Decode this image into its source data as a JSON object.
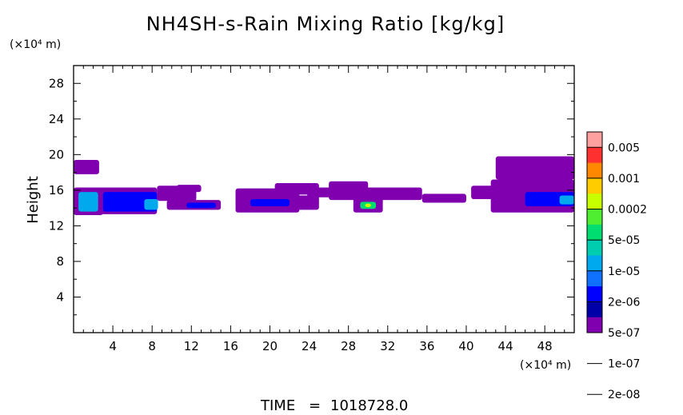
{
  "chart_data": {
    "type": "heatmap",
    "title": "NH4SH-s-Rain Mixing Ratio [kg/kg]",
    "ylabel": "Height",
    "xlabel": "",
    "x_unit": "(×10⁴ m)",
    "y_unit": "(×10⁴ m)",
    "xlim": [
      0,
      51
    ],
    "ylim": [
      0,
      30
    ],
    "x_ticks": [
      "4",
      "8",
      "12",
      "16",
      "20",
      "24",
      "28",
      "32",
      "36",
      "40",
      "44",
      "48"
    ],
    "y_ticks": [
      "4",
      "8",
      "12",
      "16",
      "20",
      "24",
      "28"
    ],
    "colorbar": {
      "scale": "log",
      "labels": [
        "0.005",
        "0.001",
        "0.0002",
        "5e-05",
        "1e-05",
        "2e-06",
        "5e-07",
        "1e-07",
        "2e-08"
      ],
      "colors": [
        "#ffa0a0",
        "#ff3030",
        "#ff8800",
        "#ffcc00",
        "#c8ff00",
        "#50ee30",
        "#00dd70",
        "#00ccb0",
        "#00a8ee",
        "#1070ff",
        "#0000ff",
        "#0000a8",
        "#8000b0"
      ]
    },
    "regions": [
      {
        "x": [
          0,
          2.6
        ],
        "y": [
          17.8,
          19.4
        ],
        "level": "1e-07"
      },
      {
        "x": [
          0,
          3
        ],
        "y": [
          13.2,
          16.3
        ],
        "level": "1e-07"
      },
      {
        "x": [
          0.5,
          2.5
        ],
        "y": [
          13.6,
          15.8
        ],
        "level": "5e-05"
      },
      {
        "x": [
          2.6,
          8.5
        ],
        "y": [
          13.3,
          16.3
        ],
        "level": "5e-07"
      },
      {
        "x": [
          3,
          8.5
        ],
        "y": [
          13.6,
          15.8
        ],
        "level": "1e-05"
      },
      {
        "x": [
          7.2,
          8.6
        ],
        "y": [
          13.8,
          15
        ],
        "level": "5e-05"
      },
      {
        "x": [
          8.5,
          12.5
        ],
        "y": [
          14.8,
          16.5
        ],
        "level": "1e-07"
      },
      {
        "x": [
          10.5,
          13
        ],
        "y": [
          15.8,
          16.6
        ],
        "level": "2e-08"
      },
      {
        "x": [
          9.5,
          15
        ],
        "y": [
          13.8,
          14.9
        ],
        "level": "5e-07"
      },
      {
        "x": [
          11.5,
          14.5
        ],
        "y": [
          14,
          14.6
        ],
        "level": "1e-05"
      },
      {
        "x": [
          16.5,
          23
        ],
        "y": [
          13.5,
          16.2
        ],
        "level": "1e-07"
      },
      {
        "x": [
          17,
          22.5
        ],
        "y": [
          13.8,
          15.5
        ],
        "level": "5e-07"
      },
      {
        "x": [
          18,
          22
        ],
        "y": [
          14.2,
          15
        ],
        "level": "1e-05"
      },
      {
        "x": [
          20.5,
          25
        ],
        "y": [
          15.5,
          16.8
        ],
        "level": "1e-07"
      },
      {
        "x": [
          22,
          25
        ],
        "y": [
          13.8,
          15.4
        ],
        "level": "2e-08"
      },
      {
        "x": [
          23.8,
          26.5
        ],
        "y": [
          15.2,
          16.3
        ],
        "level": "1e-07"
      },
      {
        "x": [
          26,
          30
        ],
        "y": [
          15.5,
          17
        ],
        "level": "2e-08"
      },
      {
        "x": [
          26,
          35.5
        ],
        "y": [
          14.9,
          16.3
        ],
        "level": "1e-07"
      },
      {
        "x": [
          28.5,
          31.5
        ],
        "y": [
          13.5,
          15.3
        ],
        "level": "5e-07"
      },
      {
        "x": [
          29.2,
          30.8
        ],
        "y": [
          13.9,
          14.7
        ],
        "level": "0.0002"
      },
      {
        "x": [
          29.7,
          30.3
        ],
        "y": [
          14.1,
          14.5
        ],
        "level": "0.001"
      },
      {
        "x": [
          31,
          34
        ],
        "y": [
          15.2,
          16
        ],
        "level": "5e-07"
      },
      {
        "x": [
          35.5,
          40
        ],
        "y": [
          14.6,
          15.6
        ],
        "level": "2e-08"
      },
      {
        "x": [
          40.5,
          43
        ],
        "y": [
          15,
          16.5
        ],
        "level": "2e-08"
      },
      {
        "x": [
          42.5,
          51
        ],
        "y": [
          13.5,
          17.2
        ],
        "level": "1e-07"
      },
      {
        "x": [
          43,
          51
        ],
        "y": [
          17.2,
          19.8
        ],
        "level": "1e-07"
      },
      {
        "x": [
          43.5,
          51
        ],
        "y": [
          14,
          16.5
        ],
        "level": "5e-07"
      },
      {
        "x": [
          46,
          51
        ],
        "y": [
          14.2,
          15.8
        ],
        "level": "1e-05"
      },
      {
        "x": [
          49.5,
          51
        ],
        "y": [
          14.4,
          15.4
        ],
        "level": "5e-05"
      }
    ]
  },
  "footer": {
    "time_label": "TIME",
    "equals": "=",
    "time_value": "1018728.0"
  }
}
